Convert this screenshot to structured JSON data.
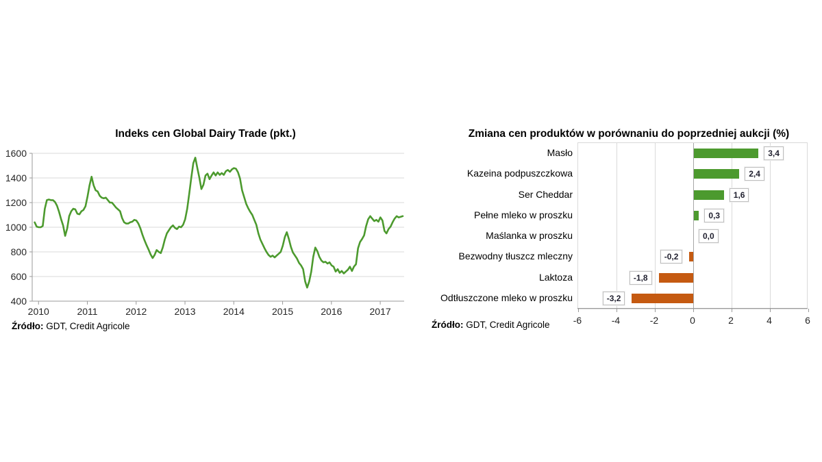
{
  "colors": {
    "line_green": "#4C9A2E",
    "bar_positive_green": "#4C9A2E",
    "bar_negative_orange": "#C55A11",
    "gridline": "#d9d9d9",
    "axis": "#9a9a9a"
  },
  "left_chart": {
    "title": "Indeks cen Global Dairy Trade (pkt.)",
    "source_label": "Źródło:",
    "source_text": " GDT, Credit Agricole"
  },
  "right_chart": {
    "title": "Zmiana cen produktów w porównaniu do poprzedniej aukcji (%)",
    "source_label": "Źródło:",
    "source_text": " GDT, Credit Agricole"
  },
  "chart_data": [
    {
      "type": "line",
      "title": "Indeks cen Global Dairy Trade (pkt.)",
      "series_name": "GDT price index (pkt.)",
      "line_color": "#4C9A2E",
      "ylim": [
        400,
        1600
      ],
      "y_ticks": [
        400,
        600,
        800,
        1000,
        1200,
        1400,
        1600
      ],
      "x_tick_years": [
        2010,
        2011,
        2012,
        2013,
        2014,
        2015,
        2016,
        2017
      ],
      "x_start": 2010.0,
      "x_step": 0.0416667,
      "grid": "horizontal",
      "values": [
        1040,
        1005,
        1000,
        1000,
        1010,
        1150,
        1220,
        1225,
        1220,
        1220,
        1205,
        1175,
        1125,
        1065,
        1015,
        930,
        990,
        1090,
        1130,
        1150,
        1145,
        1110,
        1105,
        1130,
        1140,
        1170,
        1250,
        1340,
        1410,
        1340,
        1300,
        1290,
        1255,
        1240,
        1235,
        1240,
        1220,
        1200,
        1200,
        1180,
        1160,
        1145,
        1130,
        1075,
        1040,
        1030,
        1030,
        1040,
        1045,
        1060,
        1055,
        1030,
        990,
        940,
        895,
        855,
        820,
        780,
        750,
        775,
        815,
        800,
        790,
        835,
        900,
        950,
        975,
        1000,
        1015,
        995,
        985,
        1005,
        1000,
        1020,
        1065,
        1150,
        1270,
        1400,
        1520,
        1565,
        1480,
        1400,
        1310,
        1345,
        1420,
        1435,
        1390,
        1420,
        1445,
        1420,
        1445,
        1425,
        1440,
        1425,
        1455,
        1465,
        1450,
        1470,
        1480,
        1475,
        1445,
        1395,
        1300,
        1245,
        1190,
        1155,
        1125,
        1100,
        1060,
        1020,
        950,
        900,
        865,
        830,
        800,
        775,
        760,
        770,
        755,
        770,
        785,
        800,
        850,
        920,
        960,
        905,
        840,
        795,
        770,
        745,
        710,
        690,
        660,
        560,
        510,
        560,
        640,
        760,
        835,
        805,
        760,
        730,
        715,
        720,
        705,
        715,
        690,
        680,
        640,
        660,
        630,
        645,
        625,
        640,
        655,
        680,
        645,
        680,
        700,
        830,
        880,
        905,
        935,
        1010,
        1065,
        1090,
        1070,
        1050,
        1060,
        1045,
        1080,
        1055,
        970,
        950,
        985,
        1005,
        1040,
        1070,
        1090,
        1080,
        1085,
        1090
      ]
    },
    {
      "type": "bar",
      "orientation": "horizontal",
      "title": "Zmiana cen produktów w porównaniu do poprzedniej aukcji (%)",
      "categories": [
        "Masło",
        "Kazeina podpuszczkowa",
        "Ser Cheddar",
        "Pełne mleko w proszku",
        "Maślanka w proszku",
        "Bezwodny tłuszcz mleczny",
        "Laktoza",
        "Odtłuszczone mleko w proszku"
      ],
      "values": [
        3.4,
        2.4,
        1.6,
        0.3,
        0.0,
        -0.2,
        -1.8,
        -3.2
      ],
      "value_labels": [
        "3,4",
        "2,4",
        "1,6",
        "0,3",
        "0,0",
        "-0,2",
        "-1,8",
        "-3,2"
      ],
      "xlim": [
        -6,
        6
      ],
      "x_ticks": [
        -6,
        -4,
        -2,
        0,
        2,
        4,
        6
      ],
      "x_tick_labels": [
        "-6",
        "-4",
        "-2",
        "0",
        "2",
        "4",
        "6"
      ],
      "positive_color": "#4C9A2E",
      "negative_color": "#C55A11",
      "grid": "vertical"
    }
  ]
}
